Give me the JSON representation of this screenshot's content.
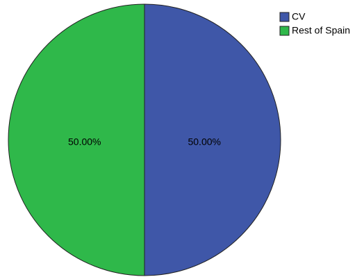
{
  "chart_data": {
    "type": "pie",
    "categories": [
      "CV",
      "Rest of Spain"
    ],
    "values": [
      50,
      50
    ],
    "value_labels": [
      "50.00%",
      "50.00%"
    ],
    "colors": [
      "#3f57a8",
      "#2fb84a"
    ],
    "legend": "top-right"
  }
}
